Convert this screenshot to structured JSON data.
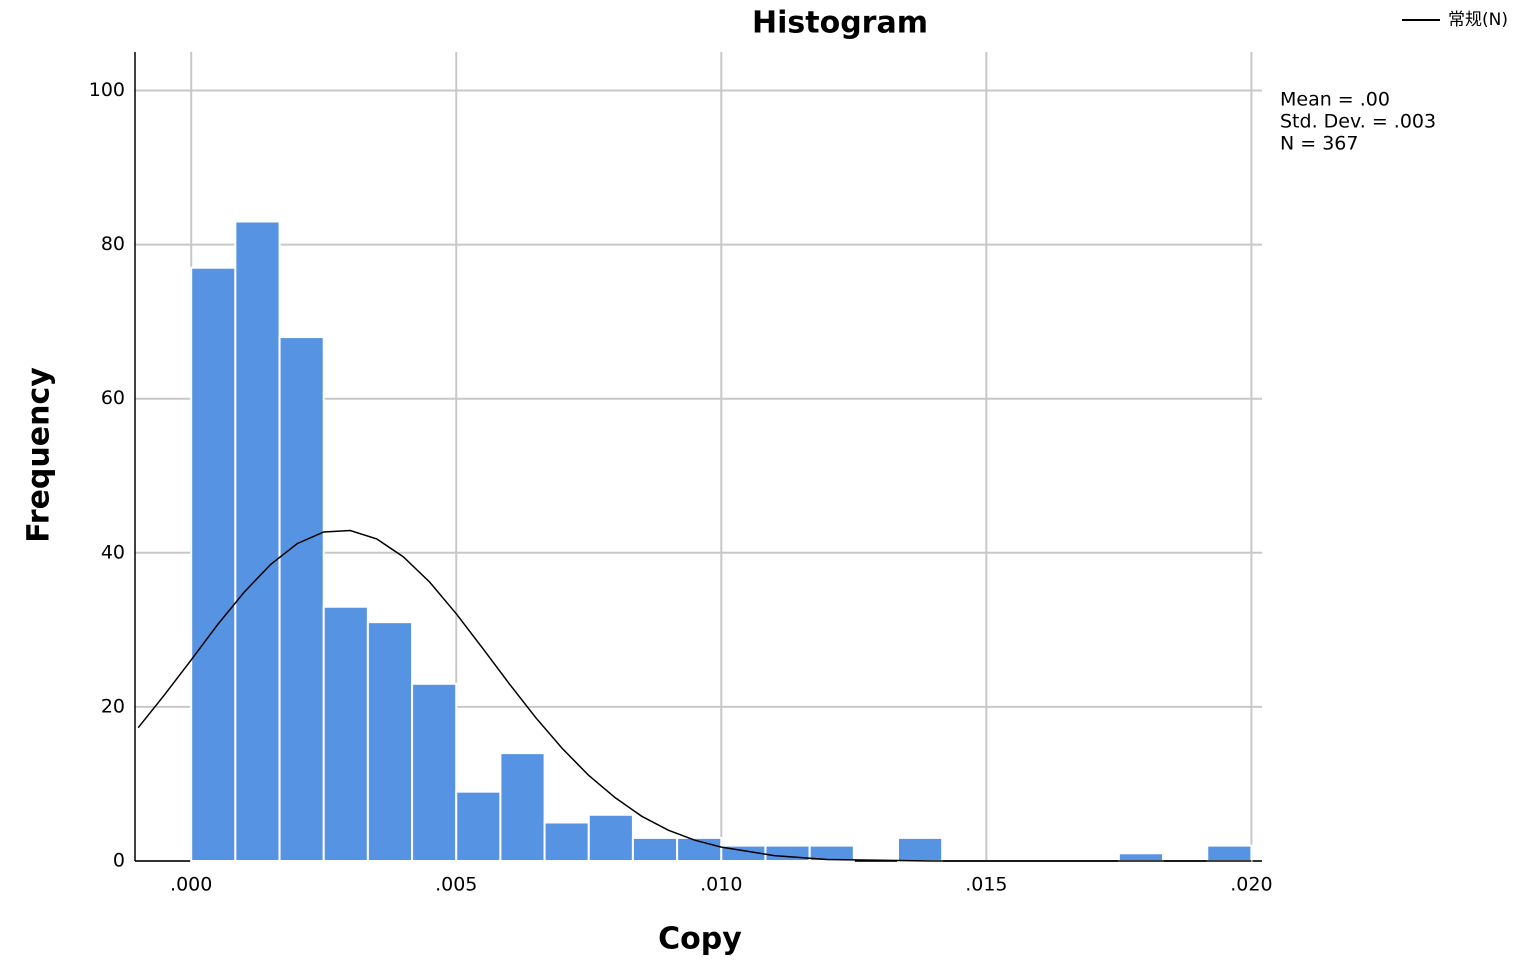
{
  "chart_data": {
    "type": "histogram",
    "title": "Histogram",
    "x_label": "Copy",
    "y_label": "Frequency",
    "bins": [
      0,
      0.000833,
      0.001667,
      0.0025,
      0.003333,
      0.004167,
      0.005,
      0.005833,
      0.006667,
      0.0075,
      0.008333,
      0.009167,
      0.01,
      0.010833,
      0.011667,
      0.0125,
      0.013333,
      0.014167,
      0.015,
      0.015833,
      0.016667,
      0.0175,
      0.018333,
      0.019167,
      0.02
    ],
    "counts": [
      77,
      83,
      68,
      33,
      31,
      23,
      9,
      14,
      5,
      6,
      3,
      3,
      2,
      2,
      2,
      0,
      3,
      0,
      0,
      0,
      0,
      1,
      0,
      2
    ],
    "color": "#5793e3",
    "curve": {
      "name": "常规(N)",
      "color": "#000000",
      "x": [
        -0.001,
        -0.0005,
        0,
        0.0005,
        0.001,
        0.0015,
        0.002,
        0.0025,
        0.003,
        0.0035,
        0.004,
        0.0045,
        0.005,
        0.0055,
        0.006,
        0.0065,
        0.007,
        0.0075,
        0.008,
        0.0085,
        0.009,
        0.0095,
        0.01,
        0.011,
        0.012,
        0.013,
        0.014,
        0.016,
        0.018,
        0.02
      ],
      "values": [
        17.3,
        21.6,
        26.1,
        30.7,
        34.9,
        38.5,
        41.2,
        42.7,
        42.9,
        41.8,
        39.5,
        36.2,
        32.1,
        27.6,
        23.0,
        18.6,
        14.6,
        11.1,
        8.2,
        5.8,
        4.0,
        2.7,
        1.8,
        0.7,
        0.2,
        0.1,
        0,
        0,
        0,
        0
      ]
    },
    "stats": [
      "Mean = .00",
      "Std. Dev. = .003",
      "N = 367"
    ],
    "xlim": [
      -0.00106,
      0.0202
    ],
    "ylim": [
      0,
      105
    ],
    "xticks": [
      {
        "value": 0,
        "label": ".000"
      },
      {
        "value": 0.005,
        "label": ".005"
      },
      {
        "value": 0.01,
        "label": ".010"
      },
      {
        "value": 0.015,
        "label": ".015"
      },
      {
        "value": 0.02,
        "label": ".020"
      }
    ],
    "yticks": [
      0,
      20,
      40,
      60,
      80,
      100
    ],
    "grid": true,
    "legend": "top-right"
  }
}
